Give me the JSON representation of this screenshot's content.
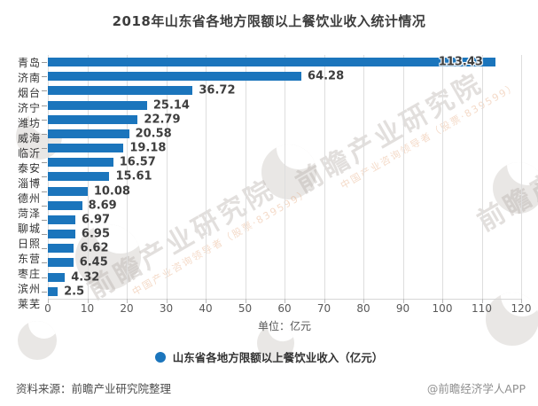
{
  "page": {
    "title": "2018年山东省各地方限额以上餐饮业收入统计情况",
    "footer_left": "资料来源：前瞻产业研究院整理",
    "footer_right": "@前瞻经济学人APP"
  },
  "chart_data": {
    "type": "bar",
    "orientation": "horizontal",
    "title": "2018年山东省各地方限额以上餐饮业收入统计情况",
    "categories": [
      "青岛",
      "济南",
      "烟台",
      "济宁",
      "潍坊",
      "威海",
      "临沂",
      "泰安",
      "淄博",
      "德州",
      "菏泽",
      "聊城",
      "日照",
      "东营",
      "枣庄",
      "滨州",
      "莱芜"
    ],
    "values": [
      113.43,
      64.28,
      36.72,
      25.14,
      22.79,
      20.58,
      19.18,
      16.57,
      15.61,
      10.08,
      8.69,
      6.97,
      6.95,
      6.62,
      6.45,
      4.32,
      2.5
    ],
    "x_ticks": [
      0,
      10,
      20,
      30,
      40,
      50,
      60,
      70,
      80,
      90,
      100,
      110,
      120
    ],
    "xlim": [
      0,
      120
    ],
    "xlabel": "单位：亿元",
    "legend": "山东省各地方限额以上餐饮业收入（亿元）",
    "legend_position": "bottom",
    "grid": "vertical",
    "bar_color": "#1b75bc",
    "first_label_inside": true
  },
  "watermark": {
    "big_text": "前瞻产业研究院",
    "small_text": "中国产业咨询领导者（股票·839599）"
  },
  "colors": {
    "bar": "#1b75bc",
    "title_text": "#3d3d3d",
    "axis_text": "#595959",
    "gridline": "#dedede"
  }
}
